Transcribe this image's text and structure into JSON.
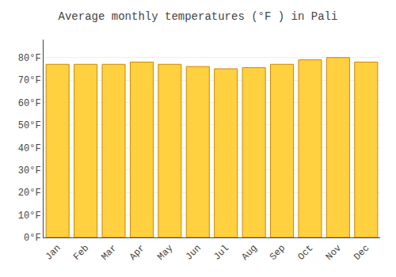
{
  "chart_data": {
    "type": "bar",
    "title": "Average monthly temperatures (°F ) in Pali",
    "categories": [
      "Jan",
      "Feb",
      "Mar",
      "Apr",
      "May",
      "Jun",
      "Jul",
      "Aug",
      "Sep",
      "Oct",
      "Nov",
      "Dec"
    ],
    "values": [
      77,
      77,
      77,
      78,
      77,
      76,
      75,
      75.5,
      77,
      79,
      80,
      78
    ],
    "color": "#FFD040",
    "ylim": [
      0,
      88
    ],
    "yticks": [
      {
        "value": 0,
        "label": "0°F"
      },
      {
        "value": 10,
        "label": "10°F"
      },
      {
        "value": 20,
        "label": "20°F"
      },
      {
        "value": 30,
        "label": "30°F"
      },
      {
        "value": 40,
        "label": "40°F"
      },
      {
        "value": 50,
        "label": "50°F"
      },
      {
        "value": 60,
        "label": "60°F"
      },
      {
        "value": 70,
        "label": "70°F"
      },
      {
        "value": 80,
        "label": "80°F"
      }
    ],
    "grid": true
  }
}
